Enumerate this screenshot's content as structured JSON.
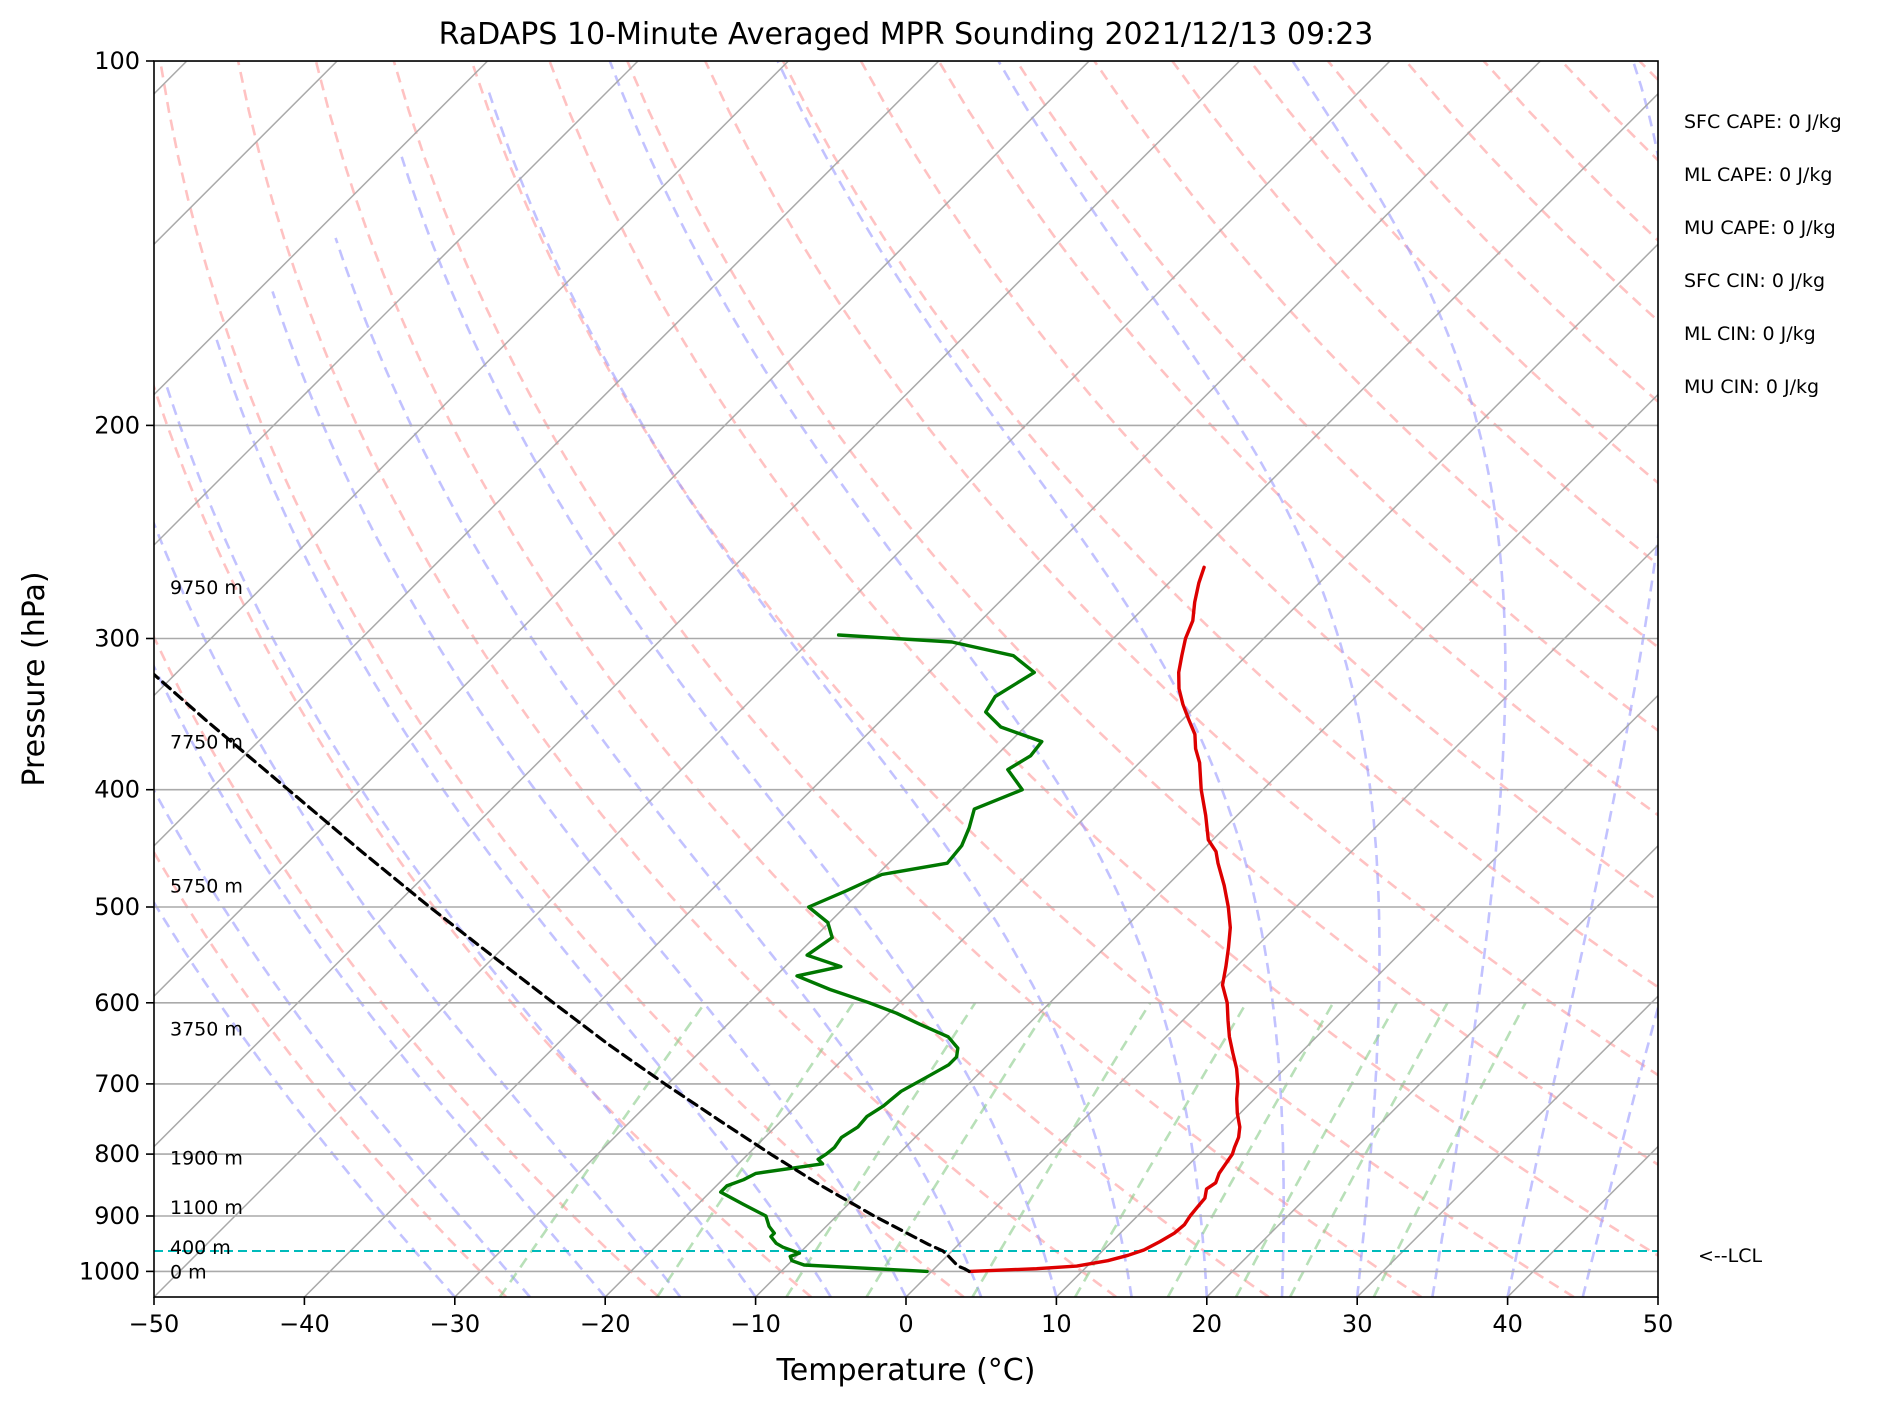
{
  "chart_data": {
    "type": "skew-t",
    "title": "RaDAPS 10-Minute Averaged MPR Sounding 2021/12/13 09:23",
    "xlabel": "Temperature (°C)",
    "ylabel": "Pressure (hPa)",
    "xlim": [
      -50,
      50
    ],
    "ylim_hPa": [
      1050,
      100
    ],
    "x_ticks": [
      -50,
      -40,
      -30,
      -20,
      -10,
      0,
      10,
      20,
      30,
      40,
      50
    ],
    "x_tick_labels": [
      "−50",
      "−40",
      "−30",
      "−20",
      "−10",
      "0",
      "10",
      "20",
      "30",
      "40",
      "50"
    ],
    "y_ticks": [
      1000,
      900,
      800,
      700,
      600,
      500,
      400,
      300,
      200,
      100
    ],
    "y_tick_labels": [
      "1000",
      "900",
      "800",
      "700",
      "600",
      "500",
      "400",
      "300",
      "200",
      "100"
    ],
    "grid": true,
    "height_labels": [
      {
        "label": "0 m",
        "pressure": 1000
      },
      {
        "label": "400 m",
        "pressure": 955
      },
      {
        "label": "1100 m",
        "pressure": 885
      },
      {
        "label": "1900 m",
        "pressure": 805
      },
      {
        "label": "3750 m",
        "pressure": 630
      },
      {
        "label": "5750 m",
        "pressure": 480
      },
      {
        "label": "7750 m",
        "pressure": 365
      },
      {
        "label": "9750 m",
        "pressure": 272
      }
    ],
    "lcl": {
      "label": "<--LCL",
      "pressure": 962
    },
    "indices": [
      "SFC CAPE: 0 J/kg",
      "ML CAPE: 0 J/kg",
      "MU CAPE: 0 J/kg",
      "SFC CIN: 0 J/kg",
      "ML CIN: 0 J/kg",
      "MU CIN: 0 J/kg"
    ],
    "series": [
      {
        "color": "#dd0000",
        "points": [
          [
            1000,
            2.5
          ],
          [
            995,
            6.8
          ],
          [
            990,
            9.3
          ],
          [
            980,
            11.0
          ],
          [
            970,
            12.0
          ],
          [
            960,
            12.7
          ],
          [
            945,
            13.2
          ],
          [
            930,
            13.6
          ],
          [
            915,
            13.7
          ],
          [
            900,
            13.5
          ],
          [
            885,
            13.4
          ],
          [
            870,
            13.3
          ],
          [
            855,
            12.8
          ],
          [
            845,
            13.0
          ],
          [
            830,
            12.6
          ],
          [
            815,
            12.4
          ],
          [
            800,
            12.2
          ],
          [
            790,
            11.9
          ],
          [
            775,
            11.5
          ],
          [
            760,
            10.9
          ],
          [
            740,
            9.8
          ],
          [
            720,
            8.8
          ],
          [
            700,
            7.9
          ],
          [
            680,
            6.8
          ],
          [
            660,
            5.5
          ],
          [
            640,
            4.2
          ],
          [
            620,
            3.0
          ],
          [
            600,
            1.8
          ],
          [
            580,
            0.3
          ],
          [
            560,
            -0.7
          ],
          [
            540,
            -1.8
          ],
          [
            520,
            -3.0
          ],
          [
            500,
            -4.5
          ],
          [
            480,
            -6.2
          ],
          [
            460,
            -8.1
          ],
          [
            450,
            -9.0
          ],
          [
            440,
            -10.3
          ],
          [
            420,
            -12.1
          ],
          [
            400,
            -14.1
          ],
          [
            380,
            -16.0
          ],
          [
            370,
            -17.2
          ],
          [
            360,
            -18.2
          ],
          [
            350,
            -19.6
          ],
          [
            340,
            -21.0
          ],
          [
            330,
            -22.3
          ],
          [
            320,
            -23.4
          ],
          [
            310,
            -24.3
          ],
          [
            300,
            -25.2
          ],
          [
            290,
            -25.9
          ],
          [
            280,
            -27.0
          ],
          [
            270,
            -28.0
          ],
          [
            262,
            -28.7
          ]
        ]
      },
      {
        "color": "#007700",
        "points": [
          [
            1000,
            -0.3
          ],
          [
            995,
            -4.0
          ],
          [
            988,
            -8.9
          ],
          [
            980,
            -10.0
          ],
          [
            972,
            -10.4
          ],
          [
            966,
            -10.0
          ],
          [
            955,
            -11.5
          ],
          [
            948,
            -12.2
          ],
          [
            936,
            -13.0
          ],
          [
            930,
            -13.0
          ],
          [
            918,
            -13.8
          ],
          [
            900,
            -14.7
          ],
          [
            880,
            -17.0
          ],
          [
            860,
            -19.3
          ],
          [
            850,
            -19.3
          ],
          [
            840,
            -18.6
          ],
          [
            830,
            -18.2
          ],
          [
            815,
            -14.4
          ],
          [
            808,
            -15.0
          ],
          [
            800,
            -14.8
          ],
          [
            790,
            -14.7
          ],
          [
            775,
            -14.9
          ],
          [
            760,
            -14.5
          ],
          [
            745,
            -14.6
          ],
          [
            730,
            -14.2
          ],
          [
            710,
            -14.0
          ],
          [
            690,
            -13.2
          ],
          [
            675,
            -12.6
          ],
          [
            665,
            -12.6
          ],
          [
            654,
            -13.1
          ],
          [
            640,
            -14.5
          ],
          [
            625,
            -17.2
          ],
          [
            612,
            -19.5
          ],
          [
            600,
            -22.0
          ],
          [
            585,
            -25.5
          ],
          [
            570,
            -28.6
          ],
          [
            560,
            -26.3
          ],
          [
            548,
            -29.3
          ],
          [
            530,
            -28.8
          ],
          [
            515,
            -30.1
          ],
          [
            500,
            -32.4
          ],
          [
            485,
            -31.0
          ],
          [
            470,
            -29.7
          ],
          [
            460,
            -26.1
          ],
          [
            445,
            -26.3
          ],
          [
            430,
            -27.0
          ],
          [
            415,
            -27.9
          ],
          [
            400,
            -26.0
          ],
          [
            385,
            -28.3
          ],
          [
            375,
            -27.7
          ],
          [
            365,
            -27.9
          ],
          [
            355,
            -31.6
          ],
          [
            345,
            -33.6
          ],
          [
            335,
            -34.0
          ],
          [
            320,
            -33.0
          ],
          [
            310,
            -35.5
          ],
          [
            302,
            -40.5
          ],
          [
            298,
            -48.5
          ]
        ]
      },
      {
        "color": "#000000",
        "points": [
          [
            1000,
            2.5
          ],
          [
            995,
            2.0
          ],
          [
            990,
            1.4
          ],
          [
            980,
            0.7
          ],
          [
            970,
            0.0
          ],
          [
            962,
            -0.6
          ],
          [
            950,
            -2.0
          ],
          [
            900,
            -7.5
          ],
          [
            850,
            -13.0
          ],
          [
            800,
            -18.5
          ],
          [
            750,
            -24.2
          ],
          [
            700,
            -30.2
          ],
          [
            650,
            -36.5
          ],
          [
            600,
            -43.0
          ],
          [
            550,
            -50.0
          ],
          [
            500,
            -57.6
          ],
          [
            450,
            -65.8
          ],
          [
            400,
            -74.8
          ],
          [
            350,
            -85.0
          ],
          [
            300,
            -96.5
          ],
          [
            280,
            -101.5
          ]
        ]
      }
    ]
  }
}
